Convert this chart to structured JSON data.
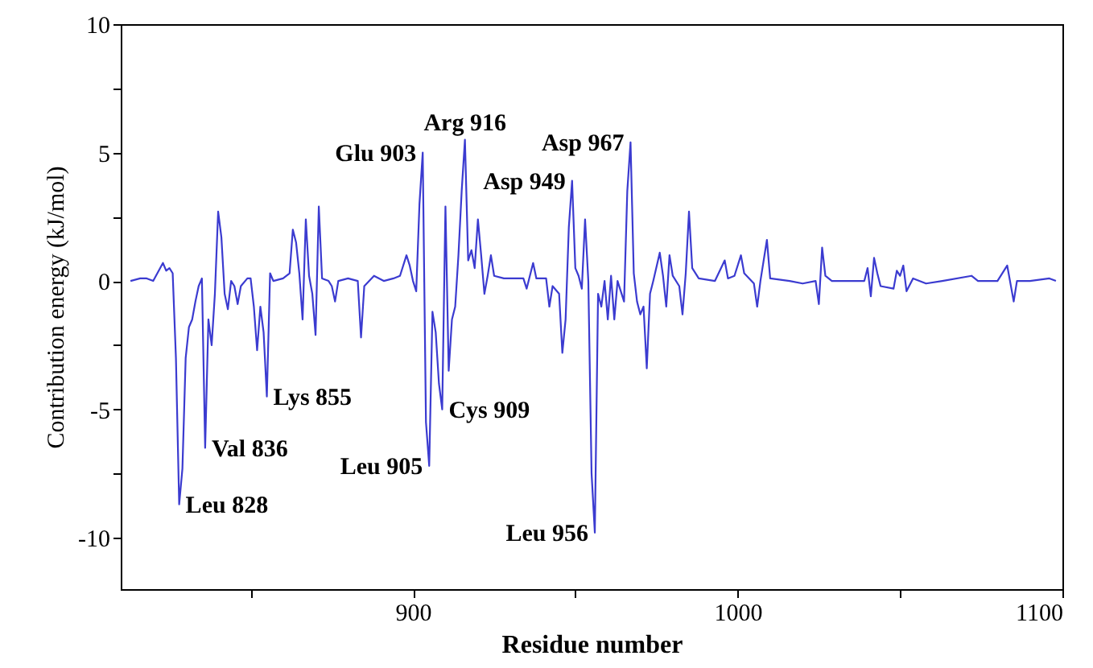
{
  "chart_data": {
    "type": "line",
    "xlabel": "Residue number",
    "ylabel": "Contribution energy (kJ/mol)",
    "xlim": [
      810,
      1100
    ],
    "ylim": [
      -12,
      10
    ],
    "xticks": [
      {
        "value": 850,
        "label": null
      },
      900,
      {
        "value": 950,
        "label": null
      },
      1000,
      {
        "value": 1050,
        "label": null
      },
      1100
    ],
    "yticks": [
      -10,
      {
        "value": -7.5,
        "label": null
      },
      -5,
      {
        "value": -2.5,
        "label": null
      },
      0,
      {
        "value": 2.5,
        "label": null
      },
      5,
      {
        "value": 7.5,
        "label": null
      },
      10
    ],
    "grid": false,
    "series": [
      {
        "color": "#3b3bd0",
        "x": [
          813,
          816,
          818,
          820,
          823,
          824,
          825,
          826,
          827,
          828,
          829,
          830,
          831,
          832,
          833,
          834,
          835,
          836,
          837,
          838,
          839,
          840,
          841,
          842,
          843,
          844,
          845,
          846,
          847,
          849,
          850,
          851,
          852,
          853,
          854,
          855,
          856,
          857,
          860,
          862,
          863,
          864,
          865,
          866,
          867,
          868,
          869,
          870,
          871,
          872,
          874,
          875,
          876,
          877,
          880,
          883,
          884,
          885,
          888,
          891,
          894,
          896,
          898,
          899,
          900,
          901,
          902,
          903,
          904,
          905,
          906,
          907,
          908,
          909,
          910,
          911,
          912,
          913,
          914,
          915,
          916,
          917,
          918,
          919,
          920,
          921,
          922,
          923,
          924,
          925,
          928,
          934,
          935,
          937,
          938,
          941,
          942,
          943,
          945,
          946,
          947,
          948,
          949,
          950,
          951,
          952,
          953,
          954,
          955,
          956,
          957,
          958,
          959,
          960,
          961,
          962,
          963,
          965,
          966,
          967,
          968,
          969,
          970,
          971,
          972,
          973,
          974,
          976,
          977,
          978,
          979,
          980,
          982,
          983,
          984,
          985,
          986,
          988,
          993,
          996,
          997,
          999,
          1001,
          1002,
          1005,
          1006,
          1007,
          1009,
          1010,
          1016,
          1020,
          1024,
          1025,
          1026,
          1027,
          1029,
          1039,
          1040,
          1041,
          1042,
          1043,
          1044,
          1048,
          1049,
          1050,
          1051,
          1052,
          1054,
          1058,
          1063,
          1072,
          1074,
          1080,
          1083,
          1085,
          1086,
          1090,
          1096,
          1098
        ],
        "values": [
          0,
          0.1,
          0.1,
          0,
          0.7,
          0.4,
          0.5,
          0.3,
          -3.0,
          -8.7,
          -7.3,
          -3.0,
          -1.8,
          -1.5,
          -0.8,
          -0.2,
          0.1,
          -6.5,
          -1.5,
          -2.5,
          -0.5,
          2.7,
          1.7,
          -0.5,
          -1.1,
          0,
          -0.2,
          -0.9,
          -0.2,
          0.1,
          0.1,
          -1.0,
          -2.7,
          -1.0,
          -2.0,
          -4.5,
          0.3,
          0,
          0.1,
          0.3,
          2.0,
          1.5,
          0.3,
          -1.5,
          2.4,
          0.2,
          -0.5,
          -2.1,
          2.9,
          0.1,
          0,
          -0.2,
          -0.8,
          0,
          0.1,
          0,
          -2.2,
          -0.2,
          0.2,
          0,
          0.1,
          0.2,
          1.0,
          0.6,
          0,
          -0.4,
          3.0,
          5.0,
          -5.5,
          -7.2,
          -1.2,
          -2.0,
          -4.0,
          -5.0,
          2.9,
          -3.5,
          -1.5,
          -1.0,
          1.0,
          3.5,
          5.5,
          0.8,
          1.2,
          0.5,
          2.4,
          1.0,
          -0.5,
          0.2,
          1.0,
          0.2,
          0.1,
          0.1,
          -0.3,
          0.7,
          0.1,
          0.1,
          -1.0,
          -0.2,
          -0.5,
          -2.8,
          -1.5,
          2.1,
          3.9,
          0.5,
          0.2,
          -0.3,
          2.4,
          0,
          -7.5,
          -9.8,
          -0.5,
          -1.0,
          0,
          -1.5,
          0.2,
          -1.5,
          0,
          -0.8,
          3.5,
          5.4,
          0.3,
          -0.8,
          -1.3,
          -1.0,
          -3.4,
          -0.5,
          0,
          1.1,
          0.2,
          -1.0,
          1.0,
          0.2,
          -0.2,
          -1.3,
          0.3,
          2.7,
          0.5,
          0.1,
          0,
          0.8,
          0.1,
          0.2,
          1.0,
          0.3,
          -0.1,
          -1.0,
          0,
          1.6,
          0.1,
          0,
          -0.1,
          0,
          -0.9,
          1.3,
          0.2,
          0,
          0,
          0.5,
          -0.6,
          0.9,
          0.3,
          -0.2,
          -0.3,
          0.4,
          0.2,
          0.6,
          -0.4,
          0.1,
          -0.1,
          0,
          0.2,
          0,
          0,
          0.6,
          -0.8,
          0,
          0,
          0.1,
          0
        ]
      }
    ],
    "annotations": [
      {
        "text": "Leu 828",
        "x": 828,
        "y": -8.7
      },
      {
        "text": "Glu 903",
        "x": 903,
        "y": 5.0
      },
      {
        "text": "Val 836",
        "x": 836,
        "y": -6.5
      },
      {
        "text": "Leu 905",
        "x": 905,
        "y": -7.2
      },
      {
        "text": "Lys 855",
        "x": 855,
        "y": -4.5
      },
      {
        "text": "Asp 949",
        "x": 949,
        "y": 3.9
      },
      {
        "text": "Cys 909",
        "x": 909,
        "y": -5.0
      },
      {
        "text": "Leu 956",
        "x": 956,
        "y": -9.8
      },
      {
        "text": "Arg 916",
        "x": 916,
        "y": 5.5
      },
      {
        "text": "Asp 967",
        "x": 967,
        "y": 5.4
      }
    ]
  }
}
